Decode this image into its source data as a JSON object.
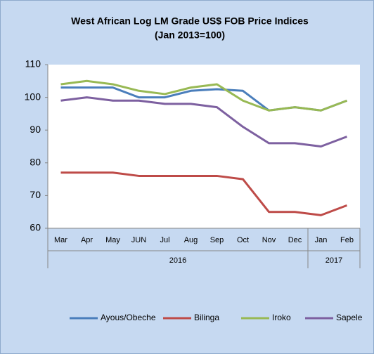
{
  "chart_data": {
    "type": "line",
    "title": "West African Log LM Grade US$ FOB Price Indices",
    "subtitle": "(Jan 2013=100)",
    "categories": [
      "Mar",
      "Apr",
      "May",
      "JUN",
      "Jul",
      "Aug",
      "Sep",
      "Oct",
      "Nov",
      "Dec",
      "Jan",
      "Feb"
    ],
    "category_years": [
      "2016",
      null,
      null,
      null,
      null,
      null,
      null,
      null,
      null,
      null,
      "2017",
      null
    ],
    "series": [
      {
        "name": "Ayous/Obeche",
        "color": "#4a7ebb",
        "values": [
          103,
          103,
          103,
          100,
          100,
          102,
          102.5,
          102,
          96,
          97,
          96,
          99
        ]
      },
      {
        "name": "Bilinga",
        "color": "#be4b48",
        "values": [
          77,
          77,
          77,
          76,
          76,
          76,
          76,
          75,
          65,
          65,
          64,
          67
        ]
      },
      {
        "name": "Iroko",
        "color": "#98b954",
        "values": [
          104,
          105,
          104,
          102,
          101,
          103,
          104,
          99,
          96,
          97,
          96,
          99
        ]
      },
      {
        "name": "Sapele",
        "color": "#7d60a0",
        "values": [
          99,
          100,
          99,
          99,
          98,
          98,
          97,
          91,
          86,
          86,
          85,
          88
        ]
      }
    ],
    "ylim": [
      60,
      110
    ],
    "yticks": [
      60,
      70,
      80,
      90,
      100,
      110
    ],
    "grid": false,
    "legend": "bottom"
  }
}
